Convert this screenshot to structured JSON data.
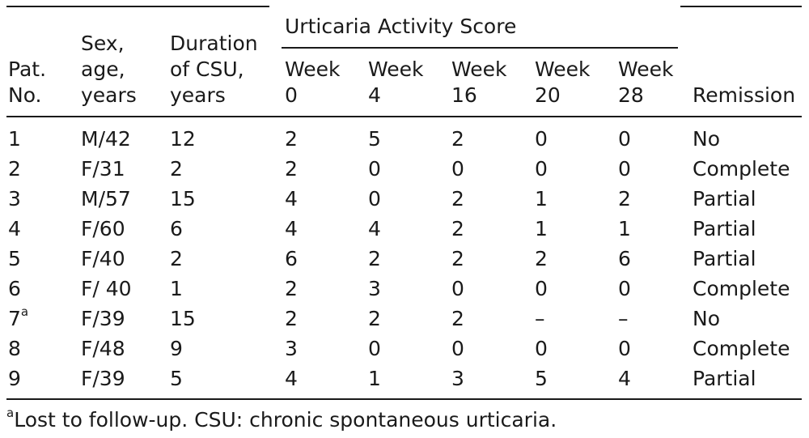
{
  "table": {
    "group_header": "Urticaria Activity Score",
    "columns": [
      {
        "lines": [
          "Pat.",
          "No."
        ]
      },
      {
        "lines": [
          "Sex,",
          "age,",
          "years"
        ]
      },
      {
        "lines": [
          "Duration",
          "of CSU,",
          "years"
        ]
      },
      {
        "lines": [
          "Week",
          "0"
        ]
      },
      {
        "lines": [
          "Week",
          "4"
        ]
      },
      {
        "lines": [
          "Week",
          "16"
        ]
      },
      {
        "lines": [
          "Week",
          "20"
        ]
      },
      {
        "lines": [
          "Week",
          "28"
        ]
      },
      {
        "lines": [
          "Remission"
        ]
      }
    ],
    "rows": [
      {
        "pat": "1",
        "sup": "",
        "sex_age": "M/42",
        "duration": "12",
        "w0": "2",
        "w4": "5",
        "w16": "2",
        "w20": "0",
        "w28": "0",
        "remission": "No"
      },
      {
        "pat": "2",
        "sup": "",
        "sex_age": "F/31",
        "duration": "2",
        "w0": "2",
        "w4": "0",
        "w16": "0",
        "w20": "0",
        "w28": "0",
        "remission": "Complete"
      },
      {
        "pat": "3",
        "sup": "",
        "sex_age": "M/57",
        "duration": "15",
        "w0": "4",
        "w4": "0",
        "w16": "2",
        "w20": "1",
        "w28": "2",
        "remission": "Partial"
      },
      {
        "pat": "4",
        "sup": "",
        "sex_age": "F/60",
        "duration": "6",
        "w0": "4",
        "w4": "4",
        "w16": "2",
        "w20": "1",
        "w28": "1",
        "remission": "Partial"
      },
      {
        "pat": "5",
        "sup": "",
        "sex_age": "F/40",
        "duration": "2",
        "w0": "6",
        "w4": "2",
        "w16": "2",
        "w20": "2",
        "w28": "6",
        "remission": "Partial"
      },
      {
        "pat": "6",
        "sup": "",
        "sex_age": "F/ 40",
        "duration": "1",
        "w0": "2",
        "w4": "3",
        "w16": "0",
        "w20": "0",
        "w28": "0",
        "remission": "Complete"
      },
      {
        "pat": "7",
        "sup": "a",
        "sex_age": "F/39",
        "duration": "15",
        "w0": "2",
        "w4": "2",
        "w16": "2",
        "w20": "–",
        "w28": "–",
        "remission": "No"
      },
      {
        "pat": "8",
        "sup": "",
        "sex_age": "F/48",
        "duration": "9",
        "w0": "3",
        "w4": "0",
        "w16": "0",
        "w20": "0",
        "w28": "0",
        "remission": "Complete"
      },
      {
        "pat": "9",
        "sup": "",
        "sex_age": "F/39",
        "duration": "5",
        "w0": "4",
        "w4": "1",
        "w16": "3",
        "w20": "5",
        "w28": "4",
        "remission": "Partial"
      }
    ]
  },
  "footnote": {
    "marker": "a",
    "text": "Lost to follow-up. CSU: chronic spontaneous urticaria."
  }
}
